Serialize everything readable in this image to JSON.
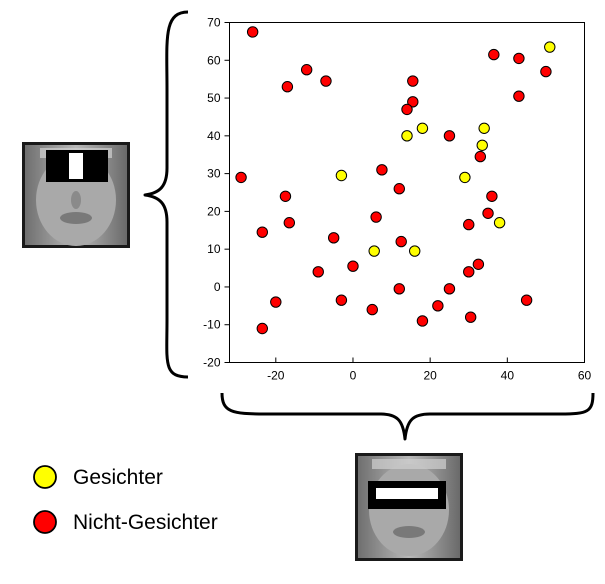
{
  "chart_data": {
    "type": "scatter",
    "title": "",
    "xlabel": "",
    "ylabel": "",
    "xlim": [
      -32,
      60
    ],
    "ylim": [
      -20,
      70
    ],
    "x_ticks": [
      -20,
      0,
      20,
      40,
      60
    ],
    "y_ticks": [
      -20,
      -10,
      0,
      10,
      20,
      30,
      40,
      50,
      60,
      70
    ],
    "x_tick_labels": [
      "-20",
      "0",
      "20",
      "40",
      "60"
    ],
    "y_tick_labels": [
      "-20",
      "-10",
      "0",
      "10",
      "20",
      "30",
      "40",
      "50",
      "60",
      "70"
    ],
    "grid": false,
    "legend_position": "bottom-left",
    "series": [
      {
        "name": "Gesichter",
        "color": "#ffff00",
        "points": [
          [
            51,
            63.5
          ],
          [
            18,
            42
          ],
          [
            14,
            40
          ],
          [
            34,
            42
          ],
          [
            33.5,
            37.5
          ],
          [
            -3,
            29.5
          ],
          [
            29,
            29
          ],
          [
            38,
            17
          ],
          [
            5.5,
            9.5
          ],
          [
            16,
            9.5
          ]
        ]
      },
      {
        "name": "Nicht-Gesichter",
        "color": "#ff0000",
        "points": [
          [
            -26,
            67.5
          ],
          [
            -12,
            57.5
          ],
          [
            -7,
            54.5
          ],
          [
            -17,
            53
          ],
          [
            15.5,
            54.5
          ],
          [
            36.5,
            61.5
          ],
          [
            43,
            60.5
          ],
          [
            50,
            57
          ],
          [
            43,
            50.5
          ],
          [
            15.5,
            49
          ],
          [
            14,
            47
          ],
          [
            25,
            40
          ],
          [
            33,
            34.5
          ],
          [
            -29,
            29
          ],
          [
            7.5,
            31
          ],
          [
            12,
            26
          ],
          [
            -17.5,
            24
          ],
          [
            36,
            24
          ],
          [
            35,
            19.5
          ],
          [
            -16.5,
            17
          ],
          [
            6,
            18.5
          ],
          [
            30,
            16.5
          ],
          [
            -23.5,
            14.5
          ],
          [
            -5,
            13
          ],
          [
            12.5,
            12
          ],
          [
            0,
            5.5
          ],
          [
            -9,
            4
          ],
          [
            30,
            4
          ],
          [
            32.5,
            6
          ],
          [
            12,
            -0.5
          ],
          [
            25,
            -0.5
          ],
          [
            -20,
            -4
          ],
          [
            -3,
            -3.5
          ],
          [
            5,
            -6
          ],
          [
            22,
            -5
          ],
          [
            45,
            -3.5
          ],
          [
            18,
            -9
          ],
          [
            30.5,
            -8
          ],
          [
            -23.5,
            -11
          ]
        ]
      }
    ]
  },
  "legend": {
    "items": [
      {
        "label": "Gesichter",
        "color": "#ffff00"
      },
      {
        "label": "Nicht-Gesichter",
        "color": "#ff0000"
      }
    ]
  },
  "feature_images": {
    "left": {
      "feature": "vertical-haar-feature"
    },
    "bottom": {
      "feature": "horizontal-haar-feature"
    }
  }
}
